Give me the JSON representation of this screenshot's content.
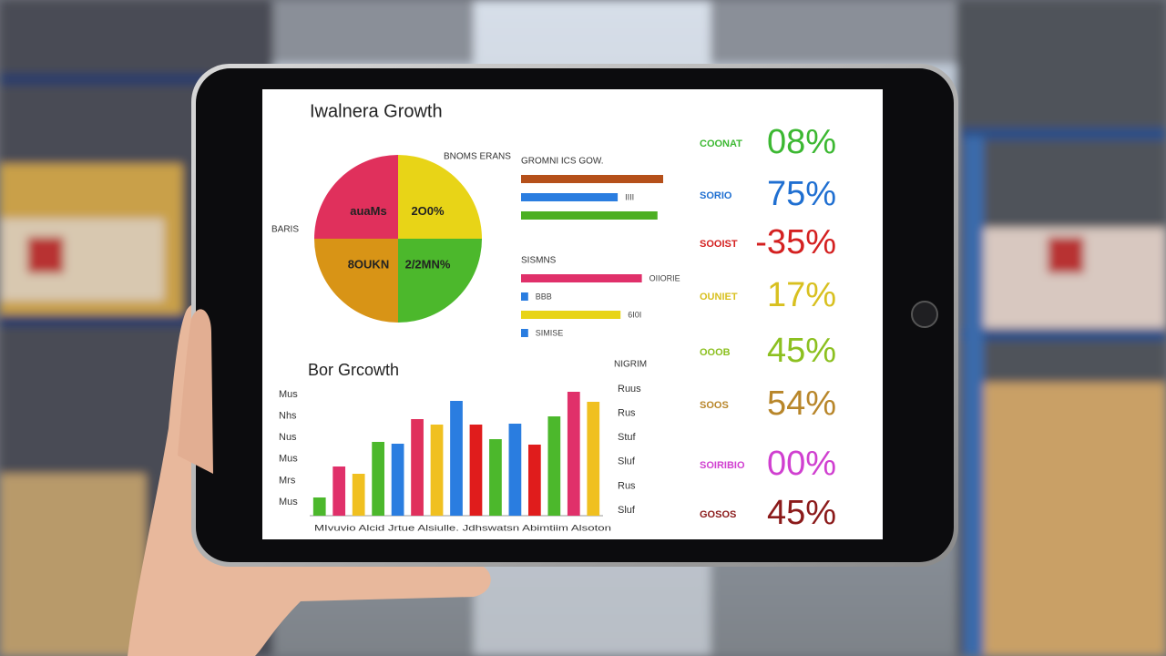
{
  "chart_data": [
    {
      "type": "pie",
      "title": "Iwalnera Growth",
      "annotations": [
        "BNOMS ERANS",
        "BARIS"
      ],
      "categories": [
        "2O0%",
        "2/2MN%",
        "8OUKN",
        "auaMs"
      ],
      "values": [
        25,
        25,
        25,
        25
      ],
      "colors": [
        "#e8d417",
        "#4cb82c",
        "#d89416",
        "#e0305c"
      ]
    },
    {
      "type": "barh",
      "xlim": [
        0,
        100
      ],
      "groups": [
        {
          "name": "GROMNI ICS GOW.",
          "values": [
            100,
            68,
            96
          ],
          "colors": [
            "#b5501a",
            "#2a7de0",
            "#4caf22"
          ],
          "labels": [
            null,
            "IIII",
            null
          ]
        },
        {
          "name": "SISMNS",
          "values": [
            85,
            5,
            70,
            5
          ],
          "colors": [
            "#e0306a",
            "#2a7de0",
            "#e8d417",
            "#2a7de0"
          ],
          "labels": [
            "OIIORIE",
            "BBB",
            "6I0I",
            "SIMISE"
          ]
        }
      ]
    },
    {
      "type": "bar",
      "title": "Bor Grcowth",
      "ylim": [
        0,
        150
      ],
      "y_labels": [
        "Mus",
        "Nhs",
        "Nus",
        "Mus",
        "Mrs",
        "Mus"
      ],
      "y2_title": "NIGRIM",
      "y2_labels": [
        "Ruus",
        "Rus",
        "Stuf",
        "Sluf",
        "Rus",
        "Sluf"
      ],
      "x_label": "MIvuvio Alcid Jrtue Alsiulle. Jdhswatsn Abimtiim Alsoton",
      "values": [
        20,
        54,
        46,
        81,
        79,
        106,
        100,
        126,
        100,
        84,
        101,
        78,
        109,
        136,
        125
      ],
      "colors": [
        "#4cb82c",
        "#e0306a",
        "#f0c020",
        "#4cb82c",
        "#2a7de0",
        "#e0305c",
        "#f0c020",
        "#2a7de0",
        "#e01c1c",
        "#4cb82c",
        "#2a7de0",
        "#e01c1c",
        "#4cb82c",
        "#e0306a",
        "#f0c020"
      ]
    }
  ],
  "kpis": [
    {
      "label": "COONAT",
      "value": "08%",
      "color": "#3cb832"
    },
    {
      "label": "SORIO",
      "value": "75%",
      "color": "#1f6fd1"
    },
    {
      "label": "SOOIST",
      "value": "-35%",
      "color": "#d42020"
    },
    {
      "label": "OUNIET",
      "value": "17%",
      "color": "#d8c020"
    },
    {
      "label": "OOOB",
      "value": "45%",
      "color": "#8cc020"
    },
    {
      "label": "SOOS",
      "value": "54%",
      "color": "#b8862a"
    },
    {
      "label": "SOIRIBIO",
      "value": "00%",
      "color": "#d040d0"
    },
    {
      "label": "GOSOS",
      "value": "45%",
      "color": "#8b1a1a"
    }
  ]
}
